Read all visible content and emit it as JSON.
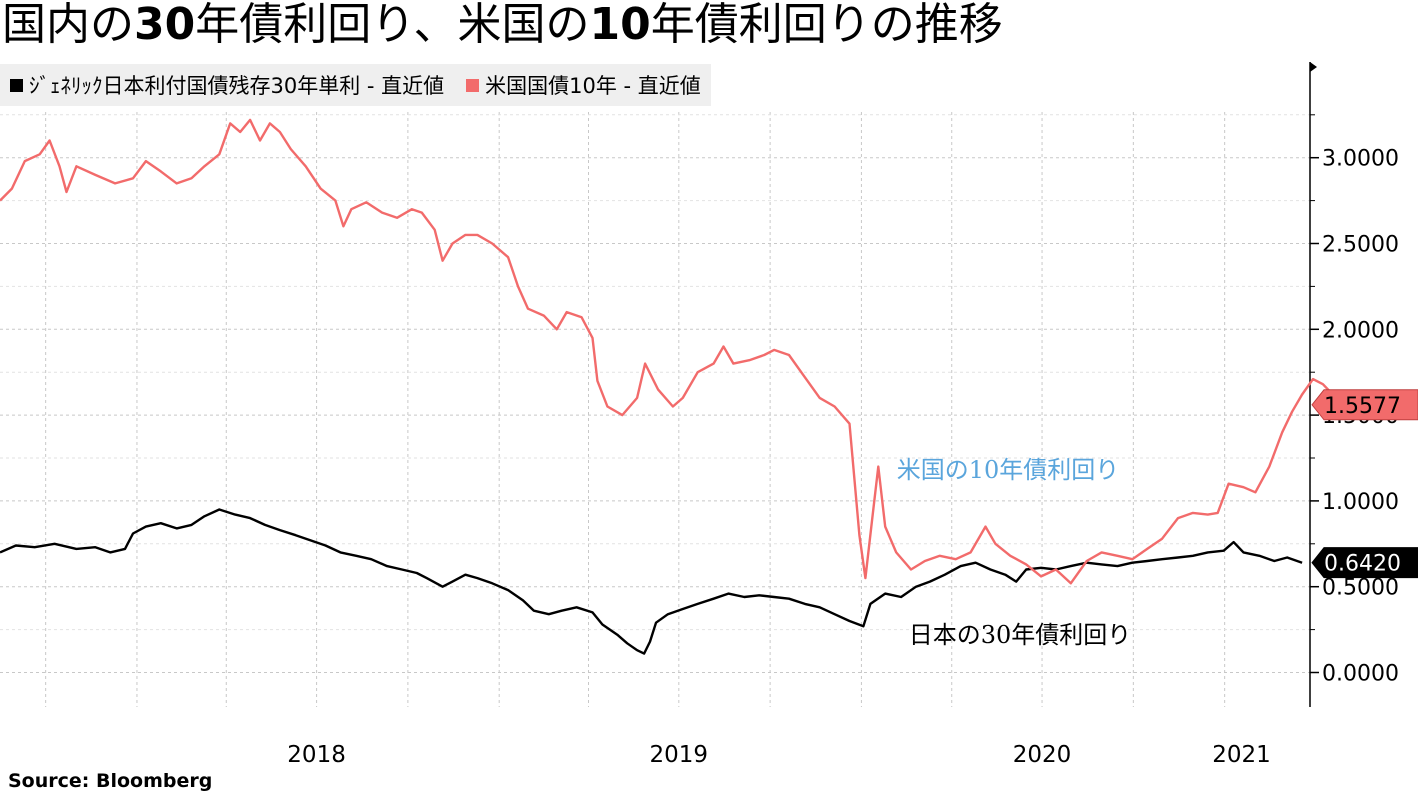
{
  "title_parts": [
    {
      "text": "国内の",
      "bold": false
    },
    {
      "text": "30",
      "bold": true
    },
    {
      "text": "年債利回り、米国の",
      "bold": false
    },
    {
      "text": "10",
      "bold": true
    },
    {
      "text": "年債利回りの推移",
      "bold": false
    }
  ],
  "source": "Source:  Bloomberg",
  "colors": {
    "jp": "#000000",
    "us": "#f26b6b",
    "annotation_us": "#5aa5dc",
    "grid": "#c8c8c8",
    "legend_bg": "#efefef"
  },
  "chart_data": {
    "type": "line",
    "x_ticks": [
      "2018",
      "2019",
      "2020",
      "2021"
    ],
    "y_ticks": [
      "0.0000",
      "0.5000",
      "1.0000",
      "1.5000",
      "2.0000",
      "2.5000",
      "3.0000"
    ],
    "ylim": [
      -0.2,
      3.5
    ],
    "xlim": [
      "2017-08-16",
      "2021-03-28"
    ],
    "grid": true,
    "legend_position": "top-left",
    "series": [
      {
        "name": "ｼﾞｪﾈﾘｯｸ日本利付国債残存30年単利 - 直近値",
        "key": "jp",
        "last_value": "0.6420",
        "points": [
          [
            "2017-08-16",
            0.7
          ],
          [
            "2017-09-01",
            0.74
          ],
          [
            "2017-09-20",
            0.73
          ],
          [
            "2017-10-10",
            0.75
          ],
          [
            "2017-11-01",
            0.72
          ],
          [
            "2017-11-20",
            0.73
          ],
          [
            "2017-12-05",
            0.7
          ],
          [
            "2017-12-20",
            0.72
          ],
          [
            "2017-12-28",
            0.81
          ],
          [
            "2018-01-10",
            0.85
          ],
          [
            "2018-01-25",
            0.87
          ],
          [
            "2018-02-10",
            0.84
          ],
          [
            "2018-02-25",
            0.86
          ],
          [
            "2018-03-10",
            0.91
          ],
          [
            "2018-03-25",
            0.95
          ],
          [
            "2018-04-10",
            0.92
          ],
          [
            "2018-04-25",
            0.9
          ],
          [
            "2018-05-10",
            0.86
          ],
          [
            "2018-05-25",
            0.83
          ],
          [
            "2018-06-10",
            0.8
          ],
          [
            "2018-06-25",
            0.77
          ],
          [
            "2018-07-10",
            0.74
          ],
          [
            "2018-07-25",
            0.7
          ],
          [
            "2018-08-10",
            0.68
          ],
          [
            "2018-08-25",
            0.66
          ],
          [
            "2018-09-10",
            0.62
          ],
          [
            "2018-09-25",
            0.6
          ],
          [
            "2018-10-10",
            0.58
          ],
          [
            "2018-10-20",
            0.55
          ],
          [
            "2018-11-05",
            0.5
          ],
          [
            "2018-11-15",
            0.53
          ],
          [
            "2018-11-28",
            0.57
          ],
          [
            "2018-12-10",
            0.55
          ],
          [
            "2018-12-25",
            0.52
          ],
          [
            "2019-01-10",
            0.48
          ],
          [
            "2019-01-25",
            0.42
          ],
          [
            "2019-02-05",
            0.36
          ],
          [
            "2019-02-20",
            0.34
          ],
          [
            "2019-03-05",
            0.36
          ],
          [
            "2019-03-20",
            0.38
          ],
          [
            "2019-04-05",
            0.35
          ],
          [
            "2019-04-15",
            0.28
          ],
          [
            "2019-04-30",
            0.22
          ],
          [
            "2019-05-10",
            0.17
          ],
          [
            "2019-05-20",
            0.13
          ],
          [
            "2019-05-27",
            0.11
          ],
          [
            "2019-06-02",
            0.18
          ],
          [
            "2019-06-08",
            0.29
          ],
          [
            "2019-06-20",
            0.34
          ],
          [
            "2019-07-05",
            0.37
          ],
          [
            "2019-07-20",
            0.4
          ],
          [
            "2019-08-05",
            0.43
          ],
          [
            "2019-08-20",
            0.46
          ],
          [
            "2019-09-05",
            0.44
          ],
          [
            "2019-09-20",
            0.45
          ],
          [
            "2019-10-05",
            0.44
          ],
          [
            "2019-10-20",
            0.43
          ],
          [
            "2019-11-05",
            0.4
          ],
          [
            "2019-11-20",
            0.38
          ],
          [
            "2019-12-05",
            0.34
          ],
          [
            "2019-12-20",
            0.3
          ],
          [
            "2020-01-03",
            0.27
          ],
          [
            "2020-01-10",
            0.4
          ],
          [
            "2020-01-25",
            0.46
          ],
          [
            "2020-02-10",
            0.44
          ],
          [
            "2020-02-25",
            0.5
          ],
          [
            "2020-03-10",
            0.53
          ],
          [
            "2020-03-25",
            0.57
          ],
          [
            "2020-04-10",
            0.62
          ],
          [
            "2020-04-25",
            0.64
          ],
          [
            "2020-05-10",
            0.6
          ],
          [
            "2020-05-25",
            0.57
          ],
          [
            "2020-06-05",
            0.53
          ],
          [
            "2020-06-15",
            0.6
          ],
          [
            "2020-06-30",
            0.61
          ],
          [
            "2020-07-15",
            0.6
          ],
          [
            "2020-07-30",
            0.62
          ],
          [
            "2020-08-15",
            0.64
          ],
          [
            "2020-08-30",
            0.63
          ],
          [
            "2020-09-15",
            0.62
          ],
          [
            "2020-09-30",
            0.64
          ],
          [
            "2020-10-15",
            0.65
          ],
          [
            "2020-10-30",
            0.66
          ],
          [
            "2020-11-15",
            0.67
          ],
          [
            "2020-11-30",
            0.68
          ],
          [
            "2020-12-15",
            0.7
          ],
          [
            "2020-12-31",
            0.71
          ],
          [
            "2021-01-10",
            0.76
          ],
          [
            "2021-01-20",
            0.7
          ],
          [
            "2021-02-05",
            0.68
          ],
          [
            "2021-02-20",
            0.65
          ],
          [
            "2021-03-05",
            0.67
          ],
          [
            "2021-03-20",
            0.64
          ]
        ]
      },
      {
        "name": "米国国債10年 - 直近値",
        "key": "us",
        "last_value": "1.5577",
        "points": [
          [
            "2017-08-16",
            2.75
          ],
          [
            "2017-08-28",
            2.82
          ],
          [
            "2017-09-10",
            2.98
          ],
          [
            "2017-09-25",
            3.02
          ],
          [
            "2017-10-05",
            3.1
          ],
          [
            "2017-10-15",
            2.95
          ],
          [
            "2017-10-22",
            2.8
          ],
          [
            "2017-11-01",
            2.95
          ],
          [
            "2017-11-20",
            2.9
          ],
          [
            "2017-12-10",
            2.85
          ],
          [
            "2017-12-28",
            2.88
          ],
          [
            "2018-01-10",
            2.98
          ],
          [
            "2018-01-25",
            2.92
          ],
          [
            "2018-02-10",
            2.85
          ],
          [
            "2018-02-25",
            2.88
          ],
          [
            "2018-03-10",
            2.95
          ],
          [
            "2018-03-25",
            3.02
          ],
          [
            "2018-04-05",
            3.2
          ],
          [
            "2018-04-15",
            3.15
          ],
          [
            "2018-04-25",
            3.22
          ],
          [
            "2018-05-05",
            3.1
          ],
          [
            "2018-05-15",
            3.2
          ],
          [
            "2018-05-25",
            3.15
          ],
          [
            "2018-06-05",
            3.05
          ],
          [
            "2018-06-20",
            2.95
          ],
          [
            "2018-07-05",
            2.82
          ],
          [
            "2018-07-20",
            2.75
          ],
          [
            "2018-07-28",
            2.6
          ],
          [
            "2018-08-05",
            2.7
          ],
          [
            "2018-08-20",
            2.74
          ],
          [
            "2018-09-05",
            2.68
          ],
          [
            "2018-09-20",
            2.65
          ],
          [
            "2018-10-05",
            2.7
          ],
          [
            "2018-10-15",
            2.68
          ],
          [
            "2018-10-28",
            2.58
          ],
          [
            "2018-11-05",
            2.4
          ],
          [
            "2018-11-15",
            2.5
          ],
          [
            "2018-11-28",
            2.55
          ],
          [
            "2018-12-10",
            2.55
          ],
          [
            "2018-12-25",
            2.5
          ],
          [
            "2019-01-10",
            2.42
          ],
          [
            "2019-01-20",
            2.25
          ],
          [
            "2019-01-30",
            2.12
          ],
          [
            "2019-02-15",
            2.08
          ],
          [
            "2019-02-28",
            2.0
          ],
          [
            "2019-03-10",
            2.1
          ],
          [
            "2019-03-25",
            2.07
          ],
          [
            "2019-04-05",
            1.95
          ],
          [
            "2019-04-10",
            1.7
          ],
          [
            "2019-04-20",
            1.55
          ],
          [
            "2019-05-05",
            1.5
          ],
          [
            "2019-05-20",
            1.6
          ],
          [
            "2019-05-28",
            1.8
          ],
          [
            "2019-06-10",
            1.65
          ],
          [
            "2019-06-25",
            1.55
          ],
          [
            "2019-07-05",
            1.6
          ],
          [
            "2019-07-20",
            1.75
          ],
          [
            "2019-08-05",
            1.8
          ],
          [
            "2019-08-15",
            1.9
          ],
          [
            "2019-08-25",
            1.8
          ],
          [
            "2019-09-10",
            1.82
          ],
          [
            "2019-09-25",
            1.85
          ],
          [
            "2019-10-05",
            1.88
          ],
          [
            "2019-10-20",
            1.85
          ],
          [
            "2019-11-05",
            1.72
          ],
          [
            "2019-11-20",
            1.6
          ],
          [
            "2019-12-05",
            1.55
          ],
          [
            "2019-12-20",
            1.45
          ],
          [
            "2019-12-30",
            0.8
          ],
          [
            "2020-01-05",
            0.55
          ],
          [
            "2020-01-12",
            0.9
          ],
          [
            "2020-01-18",
            1.2
          ],
          [
            "2020-01-25",
            0.85
          ],
          [
            "2020-02-05",
            0.7
          ],
          [
            "2020-02-20",
            0.6
          ],
          [
            "2020-03-05",
            0.65
          ],
          [
            "2020-03-20",
            0.68
          ],
          [
            "2020-04-05",
            0.66
          ],
          [
            "2020-04-20",
            0.7
          ],
          [
            "2020-05-05",
            0.85
          ],
          [
            "2020-05-15",
            0.75
          ],
          [
            "2020-05-30",
            0.68
          ],
          [
            "2020-06-15",
            0.63
          ],
          [
            "2020-06-30",
            0.56
          ],
          [
            "2020-07-15",
            0.6
          ],
          [
            "2020-07-30",
            0.52
          ],
          [
            "2020-08-15",
            0.65
          ],
          [
            "2020-08-30",
            0.7
          ],
          [
            "2020-09-15",
            0.68
          ],
          [
            "2020-09-30",
            0.66
          ],
          [
            "2020-10-15",
            0.72
          ],
          [
            "2020-10-30",
            0.78
          ],
          [
            "2020-11-15",
            0.9
          ],
          [
            "2020-11-30",
            0.93
          ],
          [
            "2020-12-15",
            0.92
          ],
          [
            "2020-12-25",
            0.93
          ],
          [
            "2021-01-05",
            1.1
          ],
          [
            "2021-01-20",
            1.08
          ],
          [
            "2021-02-01",
            1.05
          ],
          [
            "2021-02-15",
            1.2
          ],
          [
            "2021-02-28",
            1.4
          ],
          [
            "2021-03-10",
            1.52
          ],
          [
            "2021-03-20",
            1.62
          ],
          [
            "2021-03-31",
            1.71
          ],
          [
            "2021-04-10",
            1.68
          ],
          [
            "2021-04-20",
            1.62
          ],
          [
            "2021-04-30",
            1.58
          ],
          [
            "2021-05-10",
            1.56
          ]
        ]
      }
    ],
    "annotations": [
      {
        "text": "米国の10年債利回り",
        "series": "us"
      },
      {
        "text": "日本の30年債利回り",
        "series": "jp"
      }
    ]
  }
}
